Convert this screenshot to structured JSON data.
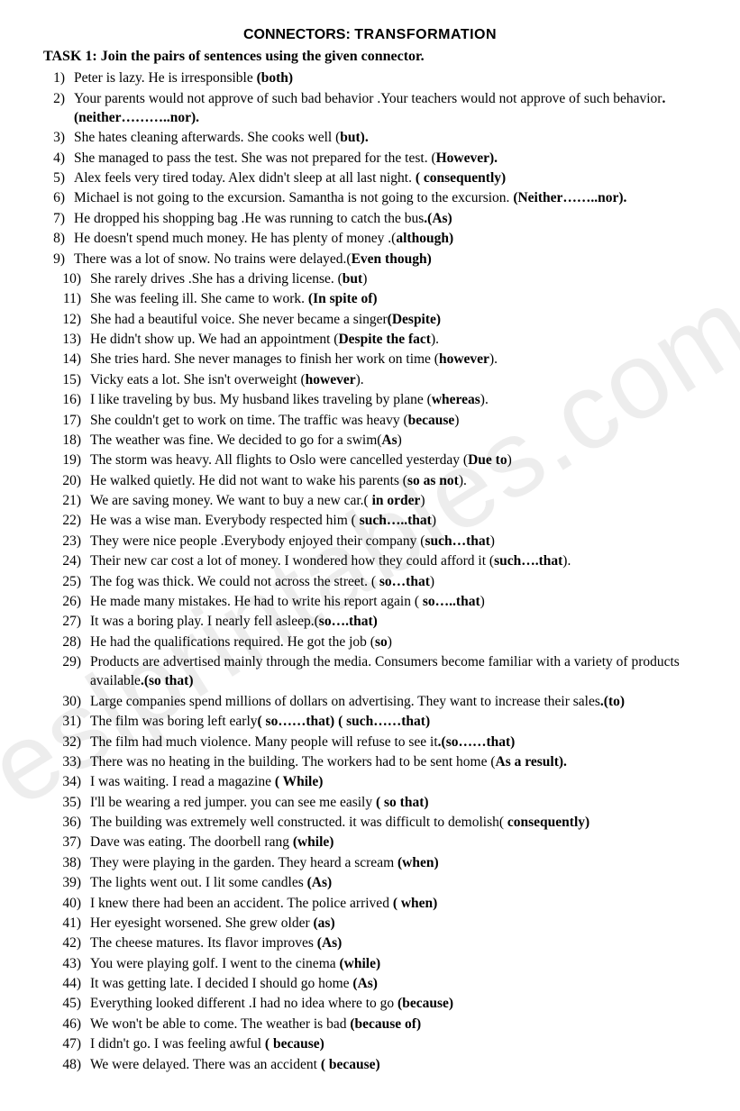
{
  "title_part1": "CONNECTORS",
  "title_sep": ": ",
  "title_part2": "TRANSFORMATION",
  "task_heading": "TASK 1: Join the pairs of sentences using the given connector.",
  "watermark": "eslprintables.com",
  "items": [
    {
      "text": "Peter is lazy. He is irresponsible ",
      "conn": "(both)"
    },
    {
      "text": "Your parents would not approve of such bad behavior .Your teachers would not approve of such behavior",
      "conn": ".(neither………..nor)."
    },
    {
      "text": "She hates cleaning afterwards. She cooks well (",
      "conn": "but).",
      "close": ""
    },
    {
      "text": "She managed to pass the test. She was not prepared for the test. (",
      "conn": "However).",
      "close": ""
    },
    {
      "text": "Alex feels very tired today. Alex didn't sleep at all last night. ",
      "conn": "( consequently)"
    },
    {
      "text": "Michael is not going to the excursion. Samantha is not going to the excursion. ",
      "conn": "(Neither……..nor)."
    },
    {
      "text": "He dropped his shopping bag .He was running to catch the bus",
      "conn": ".(As)"
    },
    {
      "text": "He doesn't spend much money. He has plenty of money .(",
      "conn": "although)"
    },
    {
      "text": "There was a lot of snow. No trains were delayed.(",
      "conn": "Even though)"
    },
    {
      "text": "She rarely drives .She has a driving license. (",
      "conn": "but",
      "close": ")"
    },
    {
      "text": "She was feeling ill. She came to work. ",
      "conn": "(In spite of)"
    },
    {
      "text": "She had a beautiful voice. She never became a singer",
      "conn": "(Despite)"
    },
    {
      "text": "He didn't show up. We had an appointment (",
      "conn": "Despite the fact",
      "close": ")."
    },
    {
      "text": "She tries hard. She never manages to finish her work on time (",
      "conn": "however",
      "close": ")."
    },
    {
      "text": "Vicky eats a lot. She isn't overweight (",
      "conn": "however",
      "close": ")."
    },
    {
      "text": "I like traveling by bus. My husband likes traveling by plane (",
      "conn": "whereas",
      "close": ")."
    },
    {
      "text": "She couldn't get to work on time. The traffic was heavy (",
      "conn": "because",
      "close": ")"
    },
    {
      "text": "The weather was fine. We decided to go for a swim(",
      "conn": "As",
      "close": ")"
    },
    {
      "text": "The storm was heavy. All flights to Oslo were cancelled yesterday (",
      "conn": "Due to",
      "close": ")"
    },
    {
      "text": "He walked quietly. He did not want to wake his parents (",
      "conn": "so as not",
      "close": ")."
    },
    {
      "text": "We are saving money. We want to buy a new car.( ",
      "conn": "in order",
      "close": ")"
    },
    {
      "text": "He was a wise man. Everybody respected  him ( ",
      "conn": "such…..that",
      "close": ")"
    },
    {
      "text": "They were  nice people .Everybody enjoyed their company (",
      "conn": "such…that",
      "close": ")"
    },
    {
      "text": "Their new car cost a lot of money. I wondered how they could afford it (",
      "conn": "such….that",
      "close": ")."
    },
    {
      "text": "The fog was thick. We could not across the street. ( ",
      "conn": "so…that",
      "close": ")"
    },
    {
      "text": "He made many mistakes. He had to write his report again ( ",
      "conn": "so…..that",
      "close": ")"
    },
    {
      "text": "It was a boring play. I nearly fell asleep.(",
      "conn": "so….that)"
    },
    {
      "text": "He had the qualifications required. He got the job (",
      "conn": "so",
      "close": ")"
    },
    {
      "text": "Products are advertised mainly through the media. Consumers become familiar with a variety  of products available",
      "conn": ".(so that)"
    },
    {
      "text": "Large companies spend millions of dollars on advertising. They want to increase their sales",
      "conn": ".(to)"
    },
    {
      "text": "The film was boring left early",
      "conn": "( so……that)    ( such……that)"
    },
    {
      "text": "The film had much violence. Many people will refuse  to see it",
      "conn": ".(so……that)"
    },
    {
      "text": "There was no heating in the building. The workers had to be sent home (",
      "conn": "As a result).",
      "close": ""
    },
    {
      "text": "I was waiting. I read a magazine ",
      "conn": "( While)"
    },
    {
      "text": "I'll be wearing a red jumper. you can see me easily   ",
      "conn": "( so that)"
    },
    {
      "text": "The building was extremely well constructed. it was difficult to    demolish( ",
      "conn": "consequently)"
    },
    {
      "text": "Dave was eating. The doorbell rang   ",
      "conn": "(while)"
    },
    {
      "text": "They were playing in the garden. They heard a scream   ",
      "conn": "(when)"
    },
    {
      "text": "The lights went out. I lit some candles  ",
      "conn": "(As)"
    },
    {
      "text": "I knew there had been an accident. The police arrived  ",
      "conn": "( when)"
    },
    {
      "text": "Her eyesight worsened. She grew older  ",
      "conn": "(as)"
    },
    {
      "text": "The cheese matures. Its flavor improves  ",
      "conn": "(As)"
    },
    {
      "text": "You were playing golf. I went to the cinema  ",
      "conn": "(while)"
    },
    {
      "text": "It was getting late. I decided I should  go home  ",
      "conn": "(As)"
    },
    {
      "text": "Everything looked different .I had no idea where to go  ",
      "conn": "(because)"
    },
    {
      "text": "We won't be able to come. The weather is bad   ",
      "conn": "(because of)"
    },
    {
      "text": "I didn't go. I was feeling awful  ",
      "conn": "( because)"
    },
    {
      "text": "We were delayed. There was an accident  ",
      "conn": "( because)"
    }
  ]
}
